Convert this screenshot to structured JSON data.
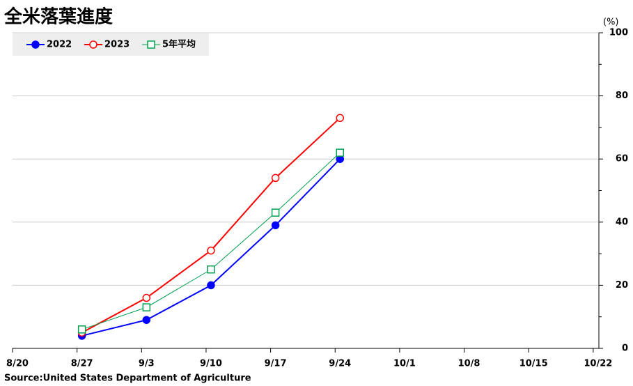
{
  "chart_data": {
    "type": "line",
    "title": "全米落葉進度",
    "y_label": "(%)",
    "source": "Source:United States Department of Agriculture",
    "categories": [
      "8/20",
      "8/27",
      "9/3",
      "9/10",
      "9/17",
      "9/24",
      "10/1",
      "10/8",
      "10/15",
      "10/22"
    ],
    "series": [
      {
        "name": "2022",
        "color": "#0000ff",
        "marker": "filled-circle",
        "values": [
          null,
          4,
          9,
          20,
          39,
          60,
          null,
          null,
          null,
          null
        ]
      },
      {
        "name": "2023",
        "color": "#ff0000",
        "marker": "open-circle",
        "values": [
          null,
          5,
          16,
          31,
          54,
          73,
          null,
          null,
          null,
          null
        ]
      },
      {
        "name": "5年平均",
        "color": "#00a050",
        "marker": "open-square",
        "values": [
          null,
          6,
          13,
          25,
          43,
          62,
          null,
          null,
          null,
          null
        ]
      }
    ],
    "ylim": [
      0,
      100
    ],
    "yticks": [
      0,
      20,
      40,
      60,
      80,
      100
    ],
    "grid": true,
    "y_axis_side": "right"
  }
}
